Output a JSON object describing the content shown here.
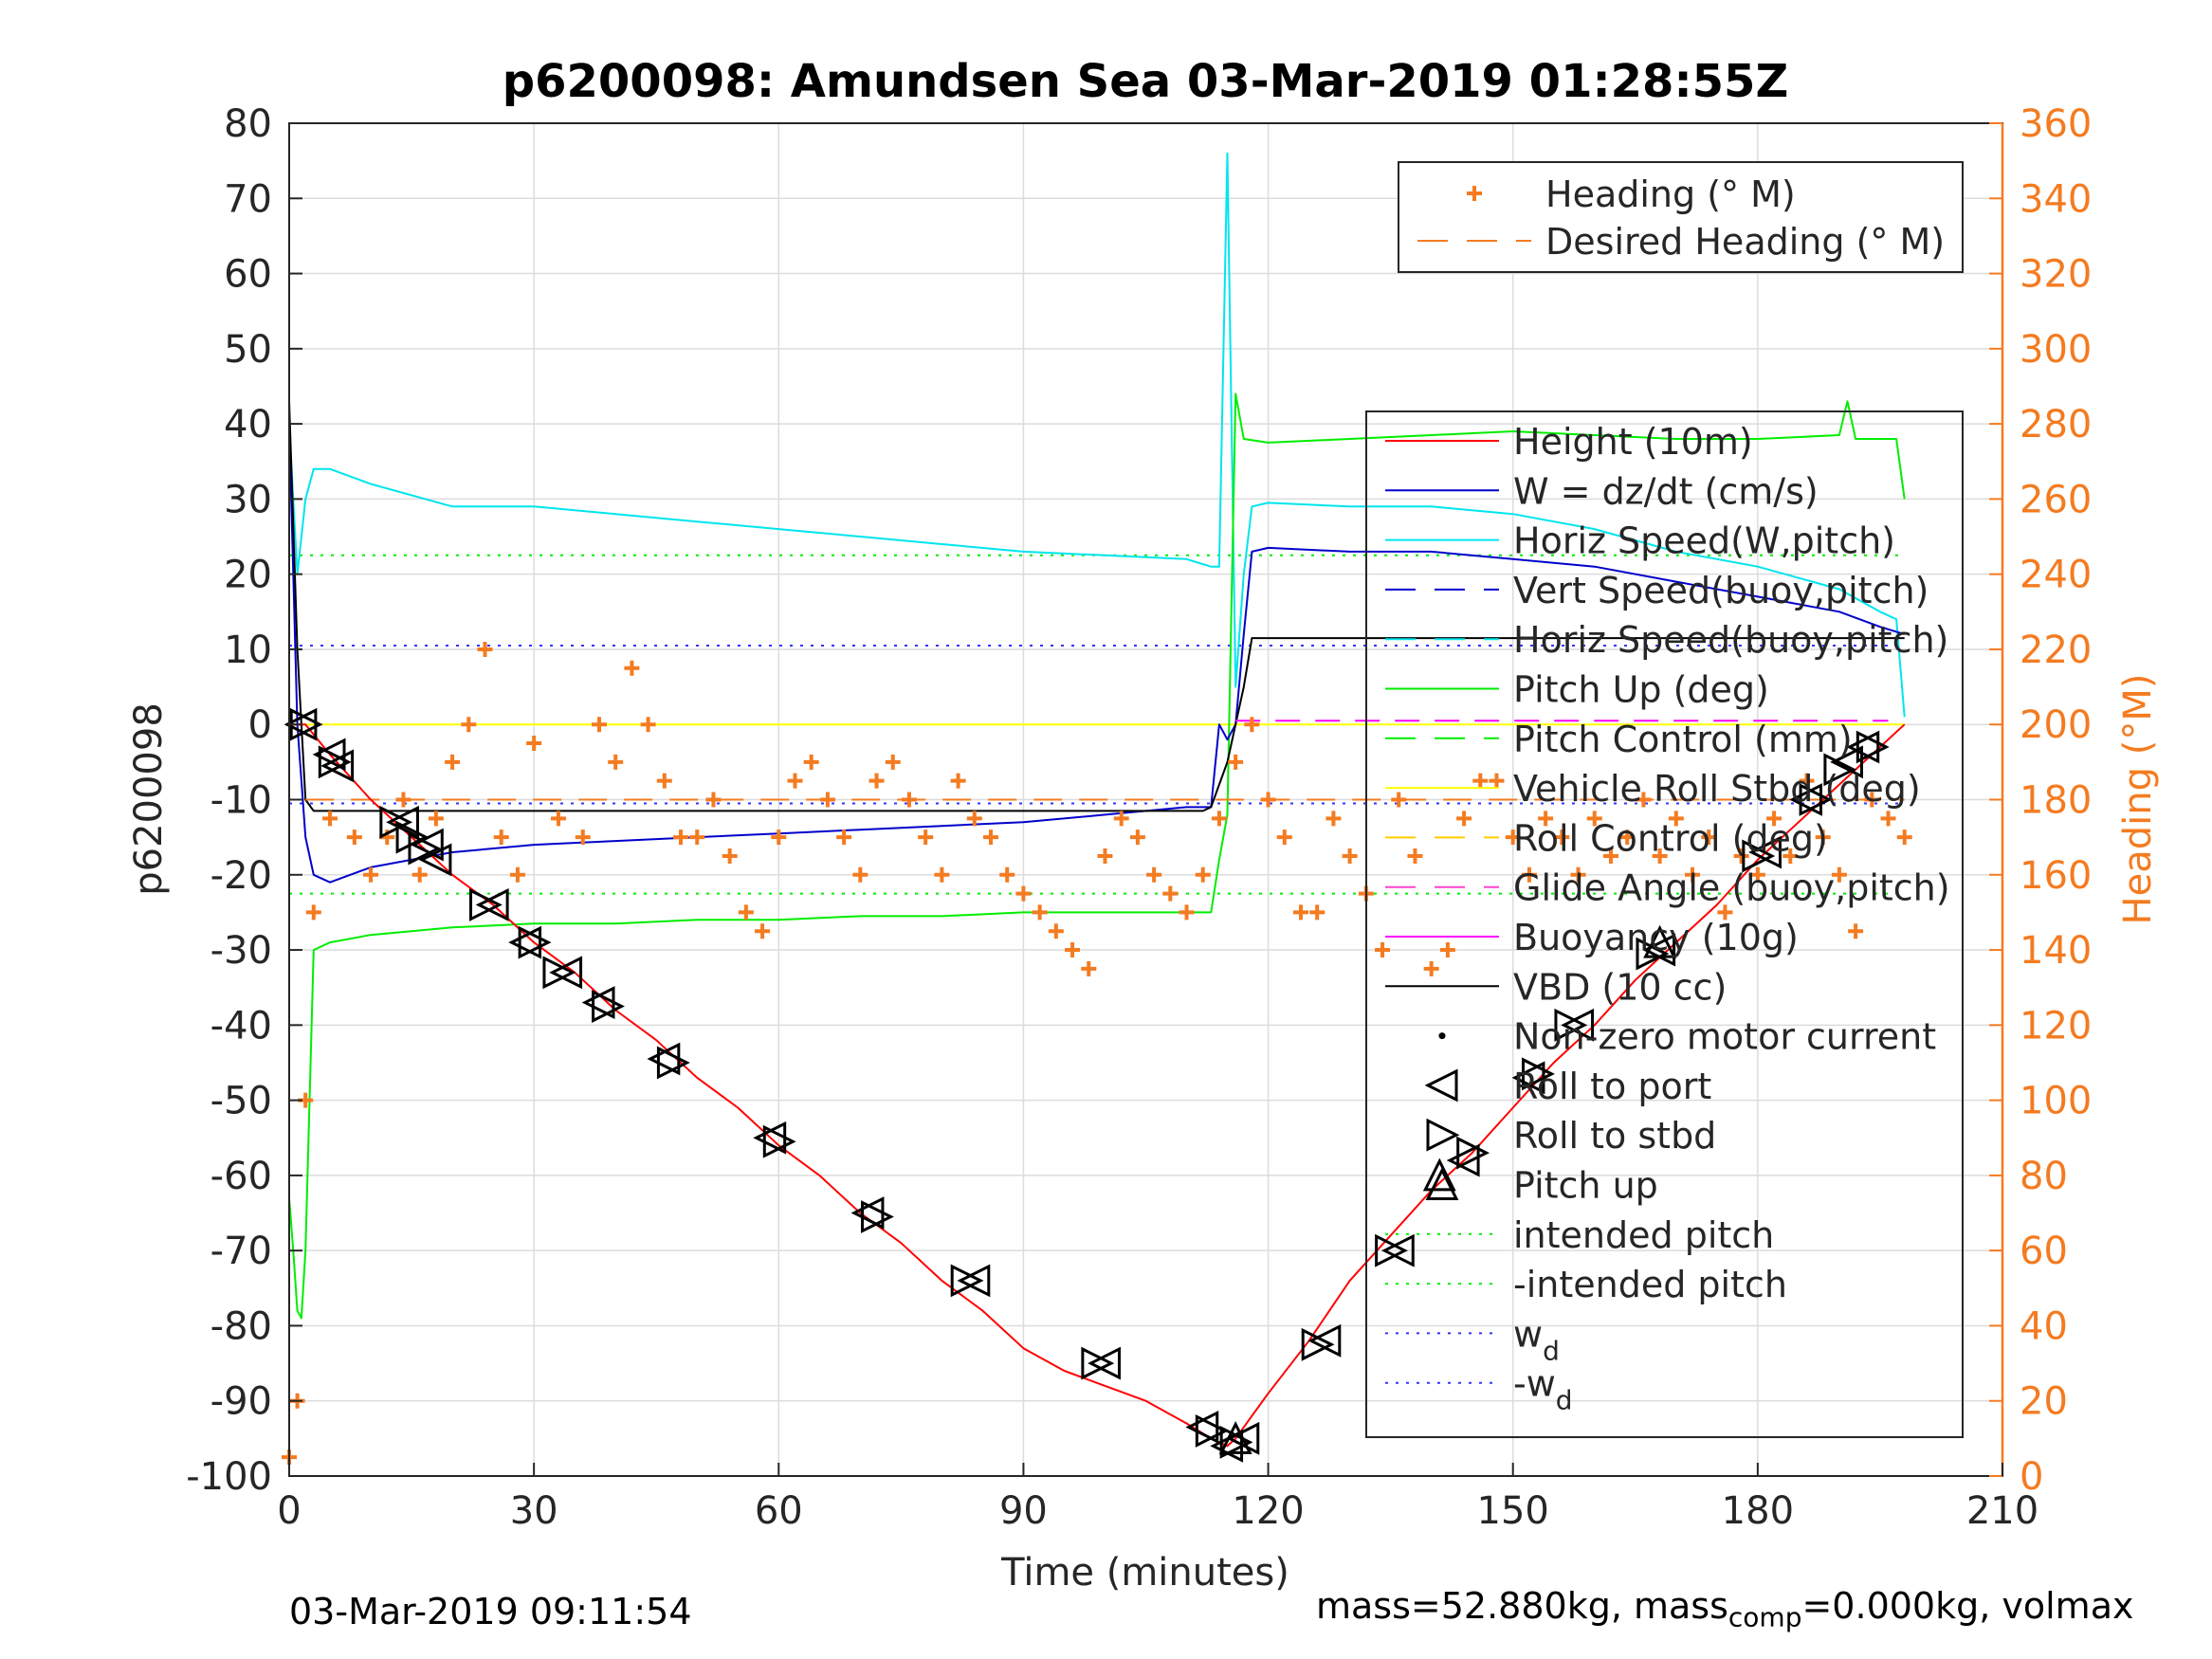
{
  "chart_data": {
    "type": "line",
    "title": "p6200098: Amundsen Sea 03-Mar-2019 01:28:55Z",
    "xlabel": "Time (minutes)",
    "ylabel_left": "p6200098",
    "ylabel_right": "Heading (°M)",
    "xlim": [
      0,
      210
    ],
    "ylim_left": [
      -100,
      80
    ],
    "ylim_right": [
      0,
      360
    ],
    "xticks": [
      0,
      30,
      60,
      90,
      120,
      150,
      180,
      210
    ],
    "yticks_left": [
      -100,
      -90,
      -80,
      -70,
      -60,
      -50,
      -40,
      -30,
      -20,
      -10,
      0,
      10,
      20,
      30,
      40,
      50,
      60,
      70,
      80
    ],
    "yticks_right": [
      0,
      20,
      40,
      60,
      80,
      100,
      120,
      140,
      160,
      180,
      200,
      220,
      240,
      260,
      280,
      300,
      320,
      340,
      360
    ],
    "grid": true,
    "colors": {
      "height": "#ff0000",
      "w": "#0000cc",
      "horiz_speed": "#00e5ee",
      "pitch": "#00ee00",
      "roll": "#ffff00",
      "heading": "#f47b20",
      "vbd": "#000000",
      "buoyancy": "#ff00ff",
      "glide": "#ff44cc",
      "wd": "#3333ff"
    },
    "legend_heading": [
      {
        "label": "Heading (° M)",
        "style": "plus",
        "color": "#f47b20"
      },
      {
        "label": "Desired Heading (° M)",
        "style": "dashed",
        "color": "#f47b20"
      }
    ],
    "legend_main": [
      {
        "label": "Height (10m)",
        "style": "solid",
        "color": "#ff0000"
      },
      {
        "label": "W = dz/dt (cm/s)",
        "style": "solid",
        "color": "#0000cc"
      },
      {
        "label": "Horiz Speed(W,pitch)",
        "style": "solid",
        "color": "#00e5ee"
      },
      {
        "label": "Vert Speed(buoy,pitch)",
        "style": "dashed",
        "color": "#0000cc"
      },
      {
        "label": "Horiz Speed(buoy,pitch)",
        "style": "dashed",
        "color": "#00e5ee"
      },
      {
        "label": "Pitch Up (deg)",
        "style": "solid",
        "color": "#00ee00"
      },
      {
        "label": "Pitch Control (mm)",
        "style": "dashed",
        "color": "#00ee00"
      },
      {
        "label": "Vehicle Roll Stbd (deg)",
        "style": "solid",
        "color": "#ffff00"
      },
      {
        "label": "Roll Control (deg)",
        "style": "dashed",
        "color": "#ffcc00"
      },
      {
        "label": "Glide Angle (buoy,pitch)",
        "style": "dashed",
        "color": "#ff44cc"
      },
      {
        "label": "Buoyancy (10g)",
        "style": "solid",
        "color": "#ff00ff"
      },
      {
        "label": "VBD (10 cc)",
        "style": "solid",
        "color": "#000000"
      },
      {
        "label": "Non-zero motor current",
        "style": "dot",
        "color": "#000000"
      },
      {
        "label": "Roll to port",
        "style": "tri-left",
        "color": "#000000"
      },
      {
        "label": "Roll to stbd",
        "style": "tri-right",
        "color": "#000000"
      },
      {
        "label": "Pitch up",
        "style": "tri-up",
        "color": "#000000"
      },
      {
        "label": "intended pitch",
        "style": "dotted",
        "color": "#00ee00"
      },
      {
        "label": "-intended pitch",
        "style": "dotted",
        "color": "#00ee00"
      },
      {
        "label": "w",
        "sub": "d",
        "style": "dotted",
        "color": "#3333ff"
      },
      {
        "label": "-w",
        "sub": "d",
        "style": "dotted",
        "color": "#3333ff"
      }
    ],
    "series": [
      {
        "name": "Height (10m)",
        "x": [
          0,
          2,
          5,
          10,
          15,
          20,
          25,
          30,
          35,
          40,
          45,
          50,
          55,
          60,
          65,
          70,
          75,
          80,
          85,
          90,
          95,
          100,
          105,
          110,
          113,
          115,
          116,
          118,
          120,
          125,
          130,
          135,
          140,
          145,
          150,
          155,
          160,
          165,
          170,
          175,
          180,
          185,
          190,
          195,
          198
        ],
        "y": [
          0,
          0,
          -4,
          -10,
          -15,
          -20,
          -24,
          -29,
          -33,
          -38,
          -42,
          -47,
          -51,
          -56,
          -60,
          -65,
          -69,
          -74,
          -78,
          -83,
          -86,
          -88,
          -90,
          -93,
          -95,
          -96,
          -95,
          -92,
          -89,
          -82,
          -74,
          -68,
          -62,
          -57,
          -51,
          -45,
          -40,
          -34,
          -29,
          -24,
          -18,
          -13,
          -8,
          -3,
          0
        ]
      },
      {
        "name": "W = dz/dt (cm/s)",
        "x": [
          0,
          1,
          2,
          3,
          5,
          10,
          15,
          20,
          30,
          40,
          50,
          60,
          70,
          80,
          90,
          100,
          110,
          113,
          114,
          115,
          116,
          117,
          118,
          120,
          130,
          140,
          150,
          160,
          170,
          180,
          190,
          195,
          198
        ],
        "y": [
          40,
          0,
          -15,
          -20,
          -21,
          -19,
          -18,
          -17,
          -16,
          -15.5,
          -15,
          -14.5,
          -14,
          -13.5,
          -13,
          -12,
          -11,
          -11,
          0,
          -2,
          0,
          12,
          23,
          23.5,
          23,
          23,
          22,
          21,
          19,
          17,
          15,
          13,
          12
        ]
      },
      {
        "name": "Horiz Speed(W,pitch)",
        "x": [
          0,
          1,
          2,
          3,
          5,
          10,
          20,
          30,
          40,
          50,
          60,
          70,
          80,
          90,
          100,
          110,
          113,
          114,
          115,
          116,
          117,
          118,
          120,
          130,
          140,
          150,
          160,
          170,
          180,
          190,
          195,
          197,
          198
        ],
        "y": [
          40,
          20,
          30,
          34,
          34,
          32,
          29,
          29,
          28,
          27,
          26,
          25,
          24,
          23,
          22.5,
          22,
          21,
          21,
          76,
          5,
          20,
          29,
          29.5,
          29,
          29,
          28,
          26,
          23,
          21,
          18,
          15,
          14,
          1
        ]
      },
      {
        "name": "Pitch Up (deg)",
        "x": [
          0,
          0.5,
          1,
          1.5,
          2,
          3,
          5,
          10,
          20,
          30,
          40,
          50,
          60,
          70,
          80,
          90,
          100,
          110,
          113,
          114,
          115,
          116,
          117,
          120,
          130,
          140,
          150,
          160,
          170,
          180,
          190,
          191,
          192,
          197,
          198
        ],
        "y": [
          -63,
          -70,
          -78,
          -79,
          -70,
          -30,
          -29,
          -28,
          -27,
          -26.5,
          -26.5,
          -26,
          -26,
          -25.5,
          -25.5,
          -25,
          -25,
          -25,
          -25,
          -18,
          -12,
          44,
          38,
          37.5,
          38,
          38.5,
          39,
          38.5,
          38,
          38,
          38.5,
          43,
          38,
          38,
          30
        ]
      },
      {
        "name": "VBD (10 cc)",
        "x": [
          0,
          1,
          2,
          3,
          5,
          20,
          60,
          100,
          112,
          113,
          115,
          117,
          118,
          120,
          150,
          190,
          196,
          198
        ],
        "y": [
          43,
          10,
          -10,
          -11.5,
          -11.5,
          -11.5,
          -11.5,
          -11.5,
          -11.5,
          -11,
          -5,
          5,
          11.5,
          11.5,
          11.5,
          11.5,
          11.5,
          11.5
        ]
      },
      {
        "name": "Vehicle Roll Stbd (deg)",
        "x": [
          0,
          5,
          20,
          40,
          60,
          80,
          100,
          112,
          116,
          120,
          140,
          160,
          180,
          198
        ],
        "y": [
          0,
          0,
          0,
          0,
          0,
          0,
          0,
          0,
          0,
          0,
          0,
          0,
          0,
          0
        ]
      },
      {
        "name": "Heading (° M)",
        "x": [
          0,
          1,
          2,
          3,
          5,
          8,
          10,
          12,
          14,
          16,
          18,
          20,
          22,
          24,
          26,
          28,
          30,
          33,
          36,
          38,
          40,
          42,
          44,
          46,
          48,
          50,
          52,
          54,
          56,
          58,
          60,
          62,
          64,
          66,
          68,
          70,
          72,
          74,
          76,
          78,
          80,
          82,
          84,
          86,
          88,
          90,
          92,
          94,
          96,
          98,
          100,
          102,
          104,
          106,
          108,
          110,
          112,
          114,
          116,
          118,
          120,
          122,
          124,
          126,
          128,
          130,
          132,
          134,
          136,
          138,
          140,
          142,
          144,
          146,
          148,
          150,
          152,
          154,
          156,
          158,
          160,
          162,
          164,
          166,
          168,
          170,
          172,
          174,
          176,
          178,
          180,
          182,
          184,
          186,
          188,
          190,
          192,
          194,
          196,
          198
        ],
        "y": [
          5,
          20,
          100,
          150,
          175,
          170,
          160,
          170,
          180,
          160,
          175,
          190,
          200,
          220,
          170,
          160,
          195,
          175,
          170,
          200,
          190,
          215,
          200,
          185,
          170,
          170,
          180,
          165,
          150,
          145,
          170,
          185,
          190,
          180,
          170,
          160,
          185,
          190,
          180,
          170,
          160,
          185,
          175,
          170,
          160,
          155,
          150,
          145,
          140,
          135,
          165,
          175,
          170,
          160,
          155,
          150,
          160,
          175,
          190,
          200,
          180,
          170,
          150,
          150,
          175,
          165,
          155,
          140,
          180,
          165,
          135,
          140,
          175,
          185,
          185,
          170,
          160,
          175,
          170,
          160,
          175,
          165,
          170,
          180,
          165,
          175,
          160,
          170,
          150,
          165,
          160,
          175,
          165,
          185,
          170,
          160,
          145,
          180,
          175,
          170
        ]
      },
      {
        "name": "Desired Heading (° M)",
        "x": [
          2,
          198
        ],
        "y": [
          180,
          180
        ]
      },
      {
        "name": "Buoyancy (10g)",
        "x": [
          116,
          196
        ],
        "y": [
          0.5,
          0.5
        ]
      },
      {
        "name": "intended pitch",
        "x": [
          0,
          198
        ],
        "y": [
          22.5,
          22.5
        ]
      },
      {
        "name": "-intended pitch",
        "x": [
          0,
          198
        ],
        "y": [
          -22.5,
          -22.5
        ]
      },
      {
        "name": "w_d",
        "x": [
          0,
          198
        ],
        "y": [
          10.5,
          10.5
        ]
      },
      {
        "name": "-w_d",
        "x": [
          0,
          198
        ],
        "y": [
          -10.5,
          -10.5
        ]
      }
    ],
    "roll_port_markers": [
      [
        1.5,
        0
      ],
      [
        5,
        -4
      ],
      [
        6,
        -5.5
      ],
      [
        14,
        -13
      ],
      [
        17,
        -16
      ],
      [
        18,
        -18
      ],
      [
        25,
        -24
      ],
      [
        29,
        -29
      ],
      [
        34,
        -33
      ],
      [
        38,
        -37
      ],
      [
        46,
        -44.5
      ],
      [
        59,
        -55
      ],
      [
        71,
        -65
      ],
      [
        84,
        -74
      ],
      [
        100,
        -85
      ],
      [
        112,
        -93.5
      ],
      [
        115,
        -96
      ],
      [
        117,
        -95
      ],
      [
        127,
        -82
      ],
      [
        136,
        -70
      ],
      [
        144,
        -58
      ],
      [
        152,
        -47
      ],
      [
        158,
        -40
      ],
      [
        168,
        -30
      ],
      [
        181,
        -17
      ],
      [
        186,
        -10
      ],
      [
        191,
        -5
      ],
      [
        193,
        -3
      ]
    ],
    "roll_stbd_markers": [
      [
        2,
        0
      ],
      [
        5.5,
        -5
      ],
      [
        13,
        -13
      ],
      [
        15,
        -15
      ],
      [
        16.5,
        -16.5
      ],
      [
        24,
        -24
      ],
      [
        30,
        -29
      ],
      [
        33,
        -33
      ],
      [
        39,
        -37.5
      ],
      [
        47,
        -45
      ],
      [
        60,
        -55.5
      ],
      [
        72,
        -65.5
      ],
      [
        83,
        -74
      ],
      [
        99,
        -85
      ],
      [
        113,
        -94
      ],
      [
        116,
        -95.5
      ],
      [
        126,
        -82.5
      ],
      [
        135,
        -70
      ],
      [
        145,
        -57
      ],
      [
        153,
        -46.5
      ],
      [
        157,
        -40
      ],
      [
        167,
        -30.5
      ],
      [
        180,
        -17.5
      ],
      [
        187,
        -10
      ],
      [
        190,
        -6
      ],
      [
        194,
        -3
      ]
    ],
    "pitch_up_markers": [
      [
        116,
        -95
      ],
      [
        141,
        -60
      ],
      [
        168,
        -29
      ]
    ],
    "footer_date": "03-Mar-2019 09:11:54",
    "footer_mass": "mass=52.880kg, mass",
    "footer_mass_sub": "comp",
    "footer_mass_tail": "=0.000kg, volmax"
  }
}
